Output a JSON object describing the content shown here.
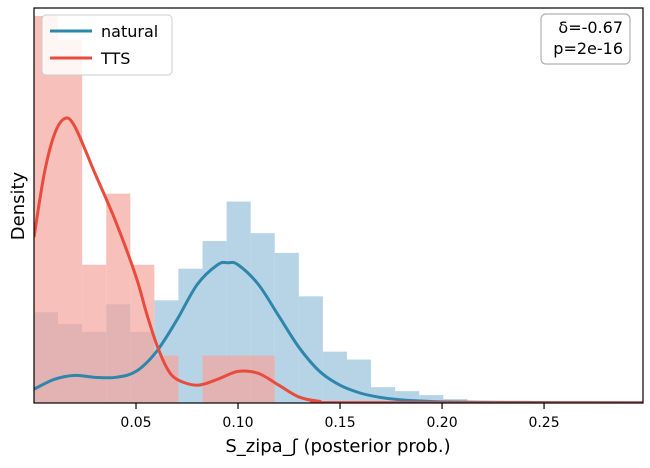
{
  "chart_data": {
    "type": "histogram+kde",
    "xlabel": "S_zipa_ʃ (posterior prob.)",
    "ylabel": "Density",
    "xlim": [
      0.0,
      0.2985
    ],
    "ylim": [
      0,
      1.0
    ],
    "xticks": [
      {
        "value": 0.05,
        "label": "0.05"
      },
      {
        "value": 0.1,
        "label": "0.10"
      },
      {
        "value": 0.15,
        "label": "0.15"
      },
      {
        "value": 0.2,
        "label": "0.20"
      },
      {
        "value": 0.25,
        "label": "0.25"
      }
    ],
    "yticks_shown": false,
    "legend": {
      "placement": "upper-left",
      "entries": [
        {
          "name": "natural",
          "color": "#2e86ab"
        },
        {
          "name": "TTS",
          "color": "#e74c3c"
        }
      ]
    },
    "annotation": {
      "lines": [
        "δ=-0.67",
        "p=2e-16"
      ],
      "placement": "upper-right"
    },
    "bin_edges": [
      0.0,
      0.0118,
      0.0236,
      0.0354,
      0.0472,
      0.059,
      0.0708,
      0.0826,
      0.0944,
      0.1062,
      0.118,
      0.1298,
      0.1416,
      0.1534,
      0.1652,
      0.177,
      0.1888,
      0.2006,
      0.2124,
      0.2242,
      0.236,
      0.2478,
      0.2596,
      0.2714,
      0.2832,
      0.295
    ],
    "series": [
      {
        "name": "natural",
        "color": "#2e86ab",
        "hist_color": "#a9cde0",
        "hist": [
          0.23,
          0.2,
          0.18,
          0.25,
          0.18,
          0.26,
          0.34,
          0.41,
          0.51,
          0.43,
          0.38,
          0.27,
          0.13,
          0.11,
          0.04,
          0.03,
          0.02,
          0.01,
          0.005,
          0.003,
          0.003,
          0.002,
          0.003,
          0.002,
          0.002
        ],
        "kde": [
          [
            0.0,
            0.035
          ],
          [
            0.01,
            0.06
          ],
          [
            0.02,
            0.07
          ],
          [
            0.03,
            0.065
          ],
          [
            0.04,
            0.065
          ],
          [
            0.05,
            0.08
          ],
          [
            0.06,
            0.13
          ],
          [
            0.07,
            0.21
          ],
          [
            0.08,
            0.3
          ],
          [
            0.09,
            0.35
          ],
          [
            0.095,
            0.355
          ],
          [
            0.1,
            0.35
          ],
          [
            0.11,
            0.3
          ],
          [
            0.12,
            0.22
          ],
          [
            0.13,
            0.14
          ],
          [
            0.14,
            0.08
          ],
          [
            0.15,
            0.045
          ],
          [
            0.16,
            0.025
          ],
          [
            0.17,
            0.014
          ],
          [
            0.18,
            0.008
          ],
          [
            0.19,
            0.005
          ],
          [
            0.2,
            0.003
          ],
          [
            0.22,
            0.002
          ],
          [
            0.24,
            0.0015
          ],
          [
            0.26,
            0.001
          ],
          [
            0.2985,
            0.001
          ]
        ]
      },
      {
        "name": "TTS",
        "color": "#e74c3c",
        "hist_color": "#f5a59c",
        "hist": [
          0.98,
          0.92,
          0.35,
          0.53,
          0.35,
          0.12,
          0.0,
          0.12,
          0.12,
          0.12,
          0,
          0,
          0,
          0,
          0,
          0,
          0,
          0,
          0,
          0,
          0,
          0,
          0,
          0,
          0
        ],
        "kde": [
          [
            0.0,
            0.42
          ],
          [
            0.005,
            0.58
          ],
          [
            0.01,
            0.68
          ],
          [
            0.015,
            0.72
          ],
          [
            0.02,
            0.7
          ],
          [
            0.03,
            0.58
          ],
          [
            0.04,
            0.46
          ],
          [
            0.05,
            0.32
          ],
          [
            0.055,
            0.23
          ],
          [
            0.06,
            0.15
          ],
          [
            0.065,
            0.09
          ],
          [
            0.07,
            0.06
          ],
          [
            0.08,
            0.045
          ],
          [
            0.09,
            0.06
          ],
          [
            0.1,
            0.08
          ],
          [
            0.11,
            0.075
          ],
          [
            0.12,
            0.045
          ],
          [
            0.13,
            0.015
          ],
          [
            0.14,
            0.004
          ],
          [
            0.15,
            0.001
          ],
          [
            0.2985,
            0.0
          ]
        ]
      }
    ]
  }
}
